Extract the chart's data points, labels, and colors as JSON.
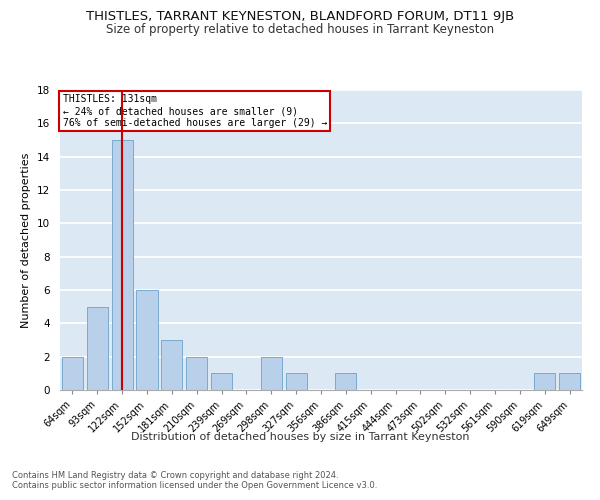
{
  "title": "THISTLES, TARRANT KEYNESTON, BLANDFORD FORUM, DT11 9JB",
  "subtitle": "Size of property relative to detached houses in Tarrant Keyneston",
  "xlabel": "Distribution of detached houses by size in Tarrant Keyneston",
  "ylabel": "Number of detached properties",
  "footnote1": "Contains HM Land Registry data © Crown copyright and database right 2024.",
  "footnote2": "Contains public sector information licensed under the Open Government Licence v3.0.",
  "categories": [
    "64sqm",
    "93sqm",
    "122sqm",
    "152sqm",
    "181sqm",
    "210sqm",
    "239sqm",
    "269sqm",
    "298sqm",
    "327sqm",
    "356sqm",
    "386sqm",
    "415sqm",
    "444sqm",
    "473sqm",
    "502sqm",
    "532sqm",
    "561sqm",
    "590sqm",
    "619sqm",
    "649sqm"
  ],
  "values": [
    2,
    5,
    15,
    6,
    3,
    2,
    1,
    0,
    2,
    1,
    0,
    1,
    0,
    0,
    0,
    0,
    0,
    0,
    0,
    1,
    1
  ],
  "bar_color": "#b8d0ea",
  "bar_edgecolor": "#7aaad0",
  "vline_index": 2,
  "vline_color": "#cc0000",
  "annotation_title": "THISTLES: 131sqm",
  "annotation_line1": "← 24% of detached houses are smaller (9)",
  "annotation_line2": "76% of semi-detached houses are larger (29) →",
  "annotation_box_color": "#cc0000",
  "ylim": [
    0,
    18
  ],
  "yticks": [
    0,
    2,
    4,
    6,
    8,
    10,
    12,
    14,
    16,
    18
  ],
  "background_color": "#dce9f5",
  "grid_color": "#ffffff",
  "title_fontsize": 9.5,
  "subtitle_fontsize": 8.5,
  "ylabel_fontsize": 8,
  "xlabel_fontsize": 8,
  "tick_fontsize": 7,
  "footnote_fontsize": 6
}
